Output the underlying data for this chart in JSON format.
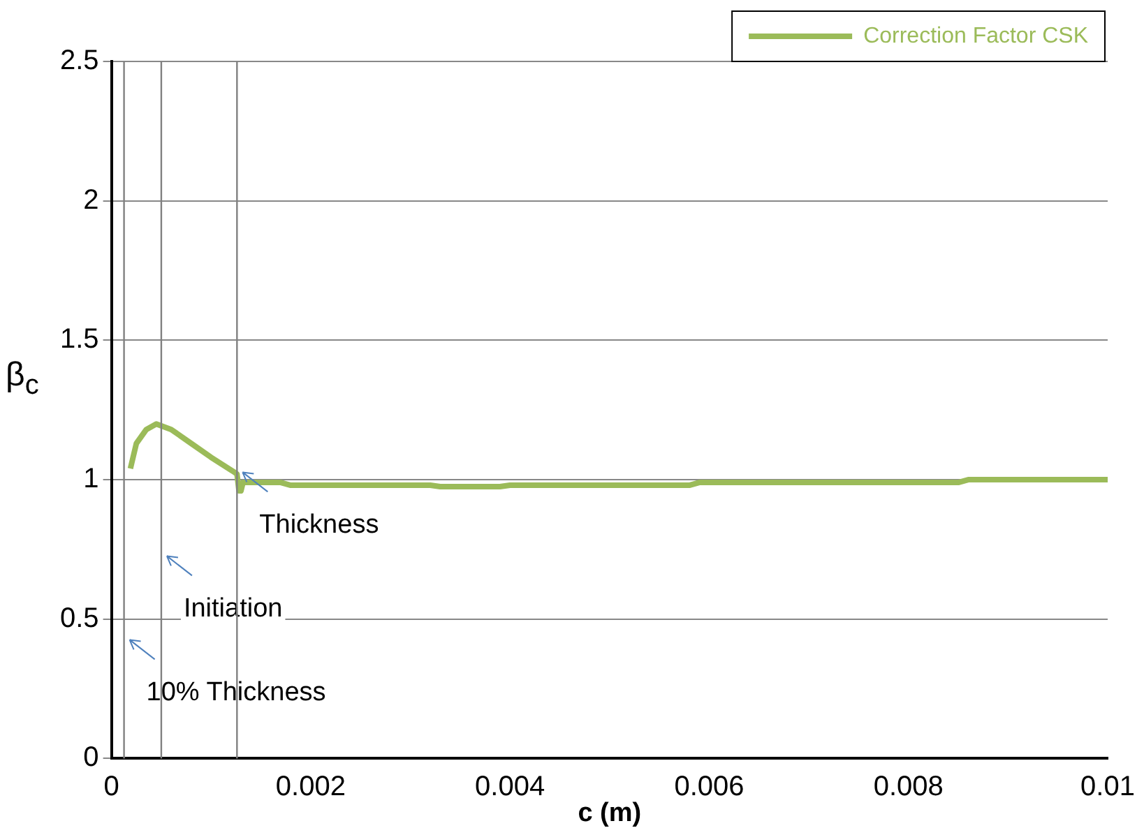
{
  "chart_data": {
    "type": "line",
    "xlabel": "c (m)",
    "ylabel": "β$_{c}$",
    "x": [
      0.00019,
      0.00025,
      0.00035,
      0.00045,
      0.0006,
      0.0008,
      0.001,
      0.00122,
      0.00126,
      0.00128,
      0.0013,
      0.00132,
      0.0017,
      0.0018,
      0.0032,
      0.0033,
      0.0039,
      0.004,
      0.0058,
      0.0059,
      0.0085,
      0.0086,
      0.01
    ],
    "series": [
      {
        "name": "Correction Factor CSK",
        "color": "#9bbb59",
        "values": [
          1.04,
          1.13,
          1.18,
          1.2,
          1.18,
          1.13,
          1.08,
          1.03,
          1.02,
          0.96,
          0.96,
          0.99,
          0.99,
          0.98,
          0.98,
          0.975,
          0.975,
          0.98,
          0.98,
          0.99,
          0.99,
          1.0,
          1.0
        ]
      }
    ],
    "xlim": [
      0,
      0.01
    ],
    "xticks": [
      0,
      0.002,
      0.004,
      0.006,
      0.008,
      0.01
    ],
    "ylim": [
      0,
      2.5
    ],
    "yticks": [
      0,
      0.5,
      1,
      1.5,
      2,
      2.5
    ],
    "grid": "y",
    "legend": "top right",
    "marker": "none",
    "line_style": "solid",
    "ref_lines": [
      {
        "axis": "x",
        "value": 0.000126,
        "label": "10% Thickness",
        "color": "#808080"
      },
      {
        "axis": "x",
        "value": 0.0005,
        "label": "Initiation",
        "color": "#808080"
      },
      {
        "axis": "x",
        "value": 0.00126,
        "label": "Thickness",
        "color": "#808080"
      }
    ]
  }
}
